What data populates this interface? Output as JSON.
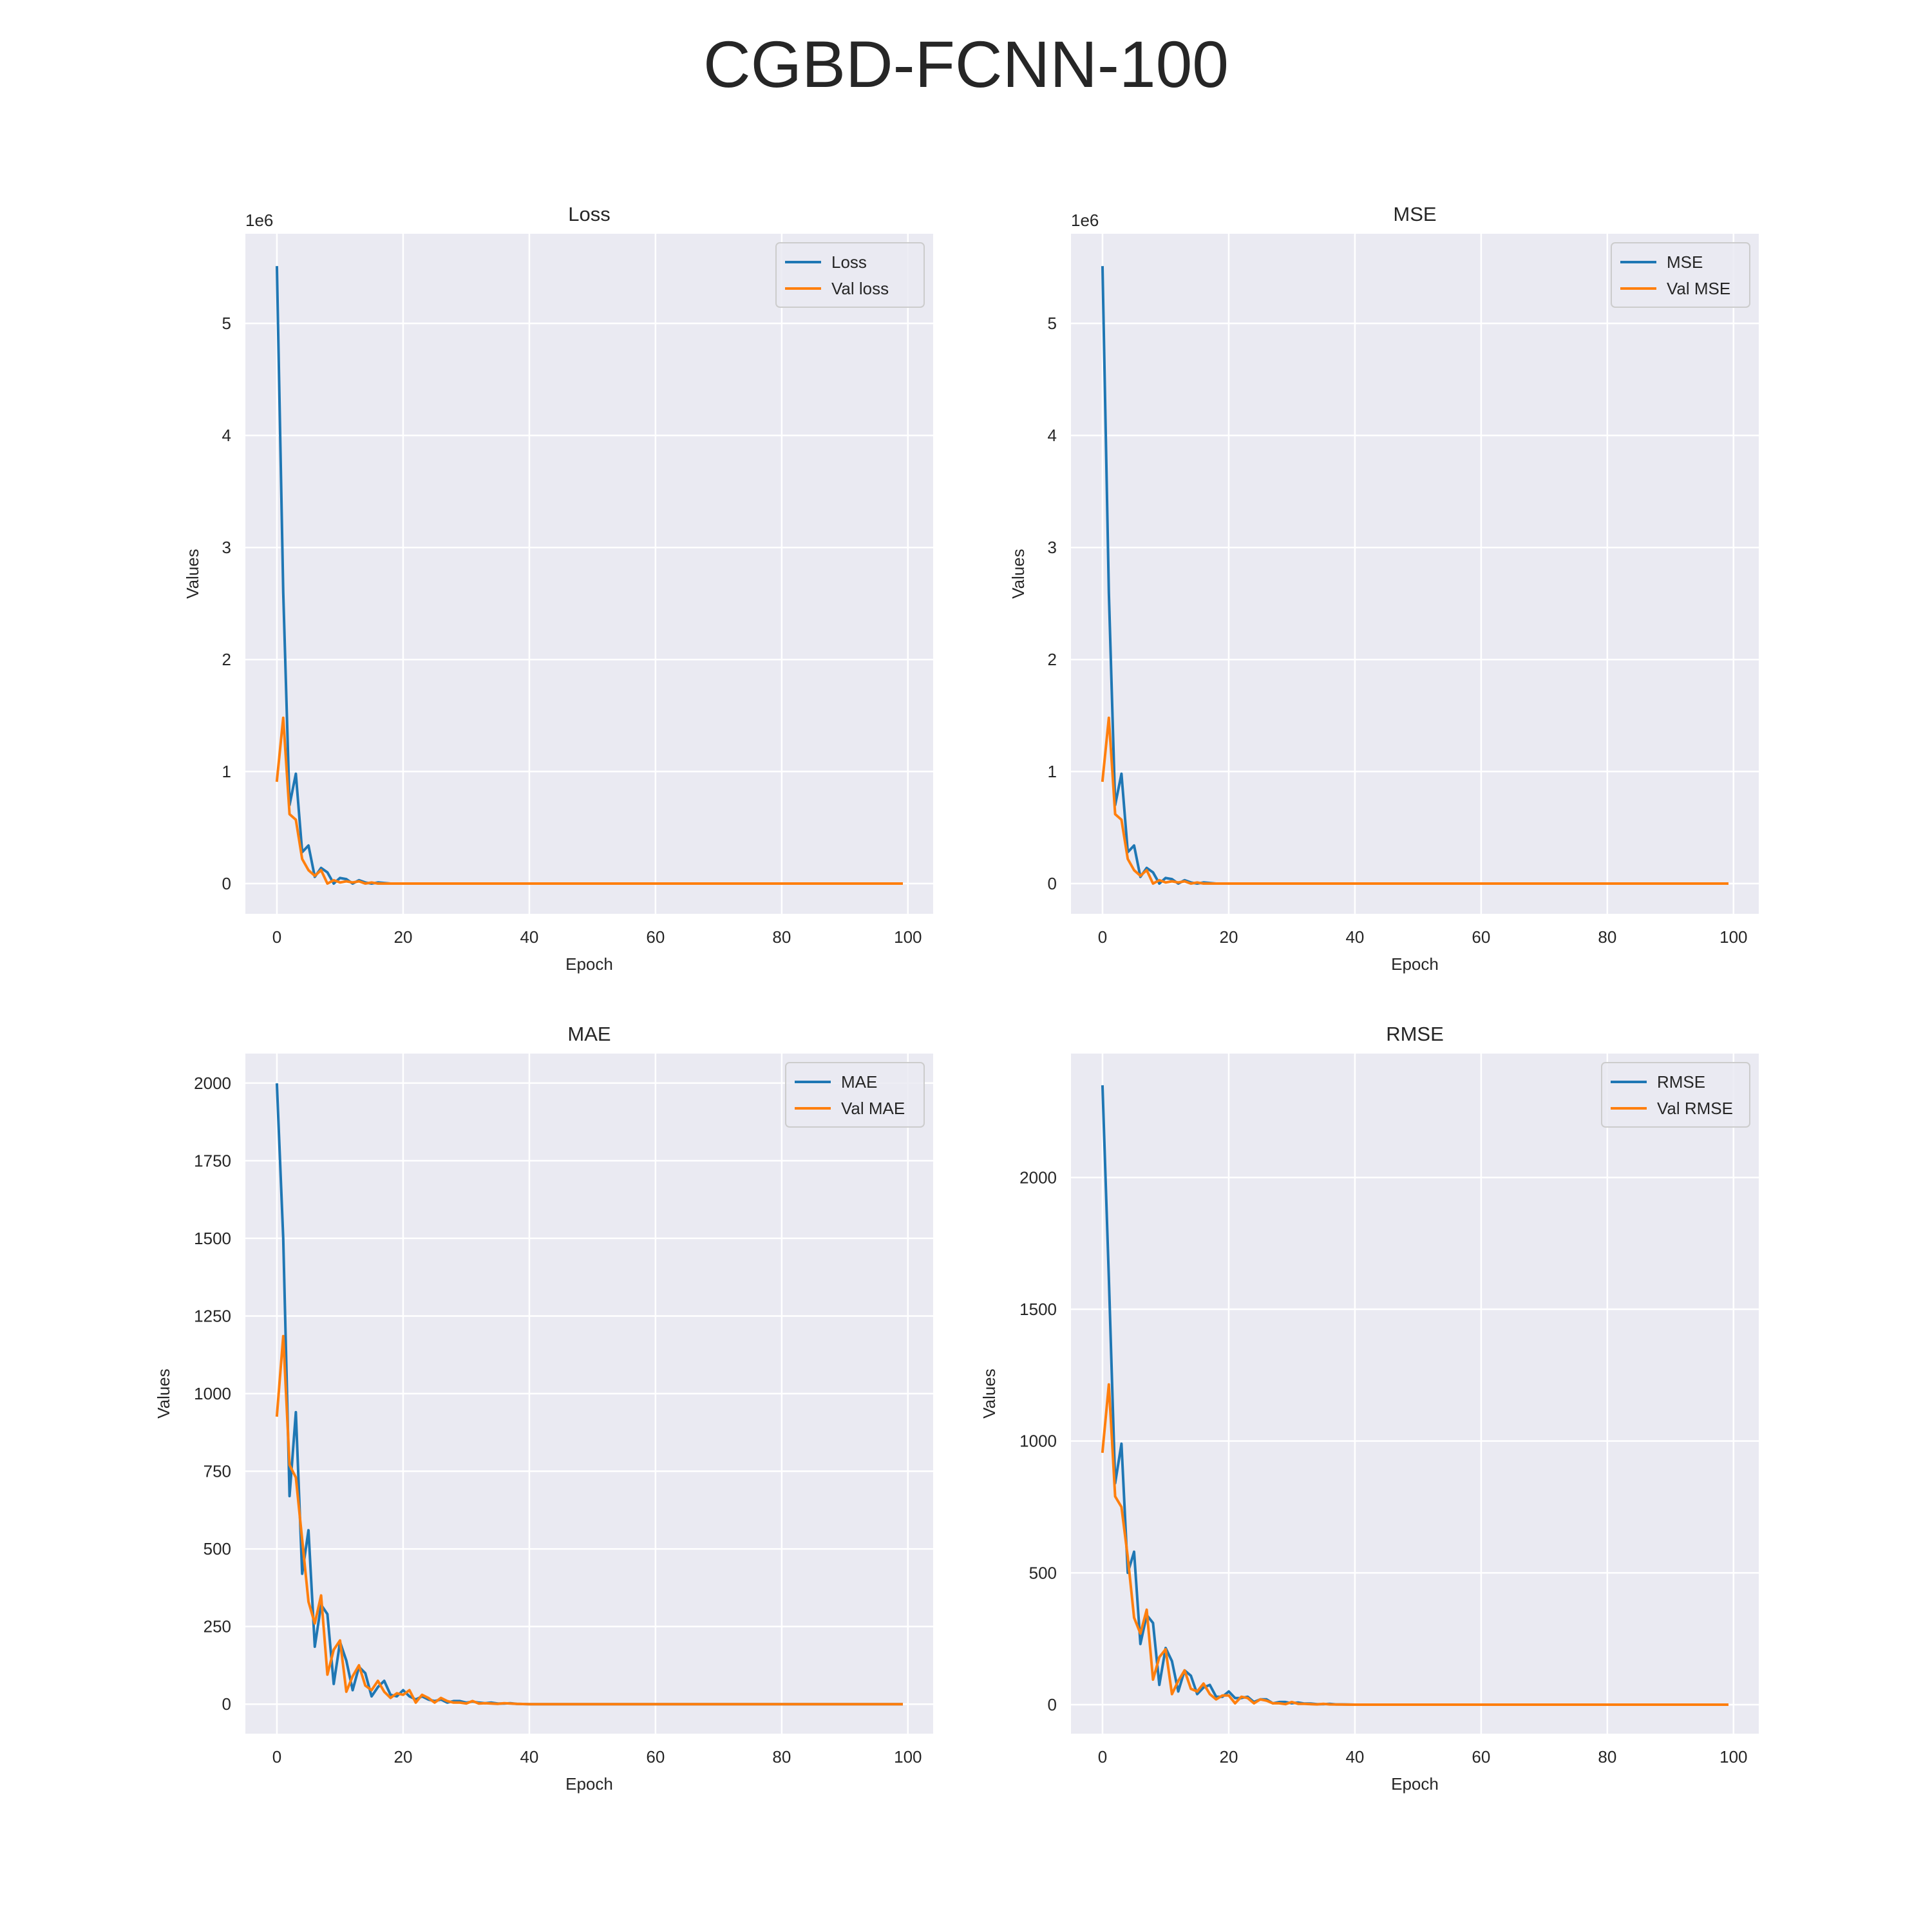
{
  "figure": {
    "title": "CGBD-FCNN-100"
  },
  "chart_data": [
    {
      "type": "line",
      "title": "Loss",
      "xlabel": "Epoch",
      "ylabel": "Values",
      "offset_text": "1e6",
      "xlim": [
        -5,
        104
      ],
      "ylim": [
        -0.27,
        5.8
      ],
      "xticks": [
        0,
        20,
        40,
        60,
        80,
        100
      ],
      "yticks": [
        0,
        1,
        2,
        3,
        4,
        5
      ],
      "ytick_labels": [
        "0",
        "1",
        "2",
        "3",
        "4",
        "5"
      ],
      "legend_position": "upper right",
      "grid": true,
      "series": [
        {
          "name": "Loss",
          "color": "#1f77b4",
          "points": [
            [
              0,
              5.5
            ],
            [
              1,
              2.6
            ],
            [
              2,
              0.7
            ],
            [
              3,
              0.98
            ],
            [
              4,
              0.28
            ],
            [
              5,
              0.34
            ],
            [
              6,
              0.06
            ],
            [
              7,
              0.14
            ],
            [
              8,
              0.1
            ],
            [
              9,
              0.0
            ],
            [
              10,
              0.05
            ],
            [
              11,
              0.04
            ],
            [
              12,
              0.0
            ],
            [
              13,
              0.03
            ],
            [
              14,
              0.01
            ],
            [
              15,
              0.0
            ],
            [
              16,
              0.01
            ],
            [
              18,
              0.0
            ],
            [
              20,
              0.0
            ],
            [
              99,
              0.0
            ]
          ]
        },
        {
          "name": "Val loss",
          "color": "#ff7f0e",
          "points": [
            [
              0,
              0.92
            ],
            [
              1,
              1.48
            ],
            [
              2,
              0.62
            ],
            [
              3,
              0.57
            ],
            [
              4,
              0.22
            ],
            [
              5,
              0.12
            ],
            [
              6,
              0.07
            ],
            [
              7,
              0.12
            ],
            [
              8,
              0.0
            ],
            [
              9,
              0.03
            ],
            [
              10,
              0.01
            ],
            [
              11,
              0.02
            ],
            [
              12,
              0.01
            ],
            [
              13,
              0.02
            ],
            [
              14,
              0.0
            ],
            [
              15,
              0.01
            ],
            [
              16,
              0.0
            ],
            [
              20,
              0.0
            ],
            [
              99,
              0.0
            ]
          ]
        }
      ]
    },
    {
      "type": "line",
      "title": "MSE",
      "xlabel": "Epoch",
      "ylabel": "Values",
      "offset_text": "1e6",
      "xlim": [
        -5,
        104
      ],
      "ylim": [
        -0.27,
        5.8
      ],
      "xticks": [
        0,
        20,
        40,
        60,
        80,
        100
      ],
      "yticks": [
        0,
        1,
        2,
        3,
        4,
        5
      ],
      "ytick_labels": [
        "0",
        "1",
        "2",
        "3",
        "4",
        "5"
      ],
      "legend_position": "upper right",
      "grid": true,
      "series": [
        {
          "name": "MSE",
          "color": "#1f77b4",
          "points": [
            [
              0,
              5.5
            ],
            [
              1,
              2.6
            ],
            [
              2,
              0.7
            ],
            [
              3,
              0.98
            ],
            [
              4,
              0.28
            ],
            [
              5,
              0.34
            ],
            [
              6,
              0.06
            ],
            [
              7,
              0.14
            ],
            [
              8,
              0.1
            ],
            [
              9,
              0.0
            ],
            [
              10,
              0.05
            ],
            [
              11,
              0.04
            ],
            [
              12,
              0.0
            ],
            [
              13,
              0.03
            ],
            [
              14,
              0.01
            ],
            [
              15,
              0.0
            ],
            [
              16,
              0.01
            ],
            [
              18,
              0.0
            ],
            [
              20,
              0.0
            ],
            [
              99,
              0.0
            ]
          ]
        },
        {
          "name": "Val MSE",
          "color": "#ff7f0e",
          "points": [
            [
              0,
              0.92
            ],
            [
              1,
              1.48
            ],
            [
              2,
              0.62
            ],
            [
              3,
              0.57
            ],
            [
              4,
              0.22
            ],
            [
              5,
              0.12
            ],
            [
              6,
              0.07
            ],
            [
              7,
              0.12
            ],
            [
              8,
              0.0
            ],
            [
              9,
              0.03
            ],
            [
              10,
              0.01
            ],
            [
              11,
              0.02
            ],
            [
              12,
              0.01
            ],
            [
              13,
              0.02
            ],
            [
              14,
              0.0
            ],
            [
              15,
              0.01
            ],
            [
              16,
              0.0
            ],
            [
              20,
              0.0
            ],
            [
              99,
              0.0
            ]
          ]
        }
      ]
    },
    {
      "type": "line",
      "title": "MAE",
      "xlabel": "Epoch",
      "ylabel": "Values",
      "offset_text": "",
      "xlim": [
        -5,
        104
      ],
      "ylim": [
        -95,
        2095
      ],
      "xticks": [
        0,
        20,
        40,
        60,
        80,
        100
      ],
      "yticks": [
        0,
        250,
        500,
        750,
        1000,
        1250,
        1500,
        1750,
        2000
      ],
      "ytick_labels": [
        "0",
        "250",
        "500",
        "750",
        "1000",
        "1250",
        "1500",
        "1750",
        "2000"
      ],
      "legend_position": "upper right",
      "grid": true,
      "series": [
        {
          "name": "MAE",
          "color": "#1f77b4",
          "points": [
            [
              0,
              1995
            ],
            [
              1,
              1500
            ],
            [
              2,
              670
            ],
            [
              3,
              940
            ],
            [
              4,
              420
            ],
            [
              5,
              560
            ],
            [
              6,
              185
            ],
            [
              7,
              320
            ],
            [
              8,
              290
            ],
            [
              9,
              65
            ],
            [
              10,
              200
            ],
            [
              11,
              140
            ],
            [
              12,
              45
            ],
            [
              13,
              120
            ],
            [
              14,
              100
            ],
            [
              15,
              25
            ],
            [
              16,
              55
            ],
            [
              17,
              75
            ],
            [
              18,
              30
            ],
            [
              19,
              25
            ],
            [
              20,
              45
            ],
            [
              21,
              25
            ],
            [
              22,
              15
            ],
            [
              23,
              25
            ],
            [
              24,
              15
            ],
            [
              25,
              10
            ],
            [
              26,
              15
            ],
            [
              27,
              5
            ],
            [
              28,
              10
            ],
            [
              29,
              10
            ],
            [
              30,
              5
            ],
            [
              31,
              8
            ],
            [
              32,
              5
            ],
            [
              33,
              3
            ],
            [
              34,
              5
            ],
            [
              35,
              2
            ],
            [
              36,
              2
            ],
            [
              37,
              3
            ],
            [
              38,
              1
            ],
            [
              40,
              0
            ],
            [
              99,
              0
            ]
          ]
        },
        {
          "name": "Val MAE",
          "color": "#ff7f0e",
          "points": [
            [
              0,
              930
            ],
            [
              1,
              1185
            ],
            [
              2,
              770
            ],
            [
              3,
              730
            ],
            [
              4,
              530
            ],
            [
              5,
              330
            ],
            [
              6,
              260
            ],
            [
              7,
              350
            ],
            [
              8,
              95
            ],
            [
              9,
              175
            ],
            [
              10,
              205
            ],
            [
              11,
              40
            ],
            [
              12,
              90
            ],
            [
              13,
              125
            ],
            [
              14,
              60
            ],
            [
              15,
              45
            ],
            [
              16,
              75
            ],
            [
              17,
              40
            ],
            [
              18,
              20
            ],
            [
              19,
              35
            ],
            [
              20,
              30
            ],
            [
              21,
              45
            ],
            [
              22,
              5
            ],
            [
              23,
              30
            ],
            [
              24,
              20
            ],
            [
              25,
              5
            ],
            [
              26,
              20
            ],
            [
              27,
              10
            ],
            [
              28,
              5
            ],
            [
              29,
              5
            ],
            [
              30,
              2
            ],
            [
              31,
              10
            ],
            [
              32,
              2
            ],
            [
              33,
              3
            ],
            [
              34,
              2
            ],
            [
              35,
              1
            ],
            [
              36,
              3
            ],
            [
              38,
              1
            ],
            [
              40,
              0
            ],
            [
              99,
              0
            ]
          ]
        }
      ]
    },
    {
      "type": "line",
      "title": "RMSE",
      "xlabel": "Epoch",
      "ylabel": "Values",
      "offset_text": "",
      "xlim": [
        -5,
        104
      ],
      "ylim": [
        -110,
        2470
      ],
      "xticks": [
        0,
        20,
        40,
        60,
        80,
        100
      ],
      "yticks": [
        0,
        500,
        1000,
        1500,
        2000
      ],
      "ytick_labels": [
        "0",
        "500",
        "1000",
        "1500",
        "2000"
      ],
      "legend_position": "upper right",
      "grid": true,
      "series": [
        {
          "name": "RMSE",
          "color": "#1f77b4",
          "points": [
            [
              0,
              2345
            ],
            [
              1,
              1620
            ],
            [
              2,
              840
            ],
            [
              3,
              990
            ],
            [
              4,
              500
            ],
            [
              5,
              580
            ],
            [
              6,
              230
            ],
            [
              7,
              340
            ],
            [
              8,
              310
            ],
            [
              9,
              75
            ],
            [
              10,
              215
            ],
            [
              11,
              165
            ],
            [
              12,
              50
            ],
            [
              13,
              130
            ],
            [
              14,
              110
            ],
            [
              15,
              40
            ],
            [
              16,
              65
            ],
            [
              17,
              75
            ],
            [
              18,
              30
            ],
            [
              19,
              30
            ],
            [
              20,
              50
            ],
            [
              21,
              25
            ],
            [
              22,
              25
            ],
            [
              23,
              30
            ],
            [
              24,
              10
            ],
            [
              25,
              20
            ],
            [
              26,
              20
            ],
            [
              27,
              5
            ],
            [
              28,
              10
            ],
            [
              29,
              10
            ],
            [
              30,
              5
            ],
            [
              31,
              8
            ],
            [
              32,
              4
            ],
            [
              33,
              4
            ],
            [
              34,
              2
            ],
            [
              35,
              2
            ],
            [
              36,
              3
            ],
            [
              37,
              1
            ],
            [
              38,
              1
            ],
            [
              40,
              0
            ],
            [
              99,
              0
            ]
          ]
        },
        {
          "name": "Val RMSE",
          "color": "#ff7f0e",
          "points": [
            [
              0,
              960
            ],
            [
              1,
              1215
            ],
            [
              2,
              790
            ],
            [
              3,
              750
            ],
            [
              4,
              560
            ],
            [
              5,
              330
            ],
            [
              6,
              270
            ],
            [
              7,
              360
            ],
            [
              8,
              95
            ],
            [
              9,
              180
            ],
            [
              10,
              210
            ],
            [
              11,
              40
            ],
            [
              12,
              90
            ],
            [
              13,
              130
            ],
            [
              14,
              60
            ],
            [
              15,
              50
            ],
            [
              16,
              80
            ],
            [
              17,
              40
            ],
            [
              18,
              20
            ],
            [
              19,
              35
            ],
            [
              20,
              35
            ],
            [
              21,
              5
            ],
            [
              22,
              30
            ],
            [
              23,
              25
            ],
            [
              24,
              5
            ],
            [
              25,
              20
            ],
            [
              26,
              15
            ],
            [
              27,
              5
            ],
            [
              28,
              5
            ],
            [
              29,
              2
            ],
            [
              30,
              10
            ],
            [
              31,
              3
            ],
            [
              32,
              3
            ],
            [
              33,
              2
            ],
            [
              34,
              1
            ],
            [
              35,
              3
            ],
            [
              36,
              1
            ],
            [
              40,
              0
            ],
            [
              99,
              0
            ]
          ]
        }
      ]
    }
  ]
}
